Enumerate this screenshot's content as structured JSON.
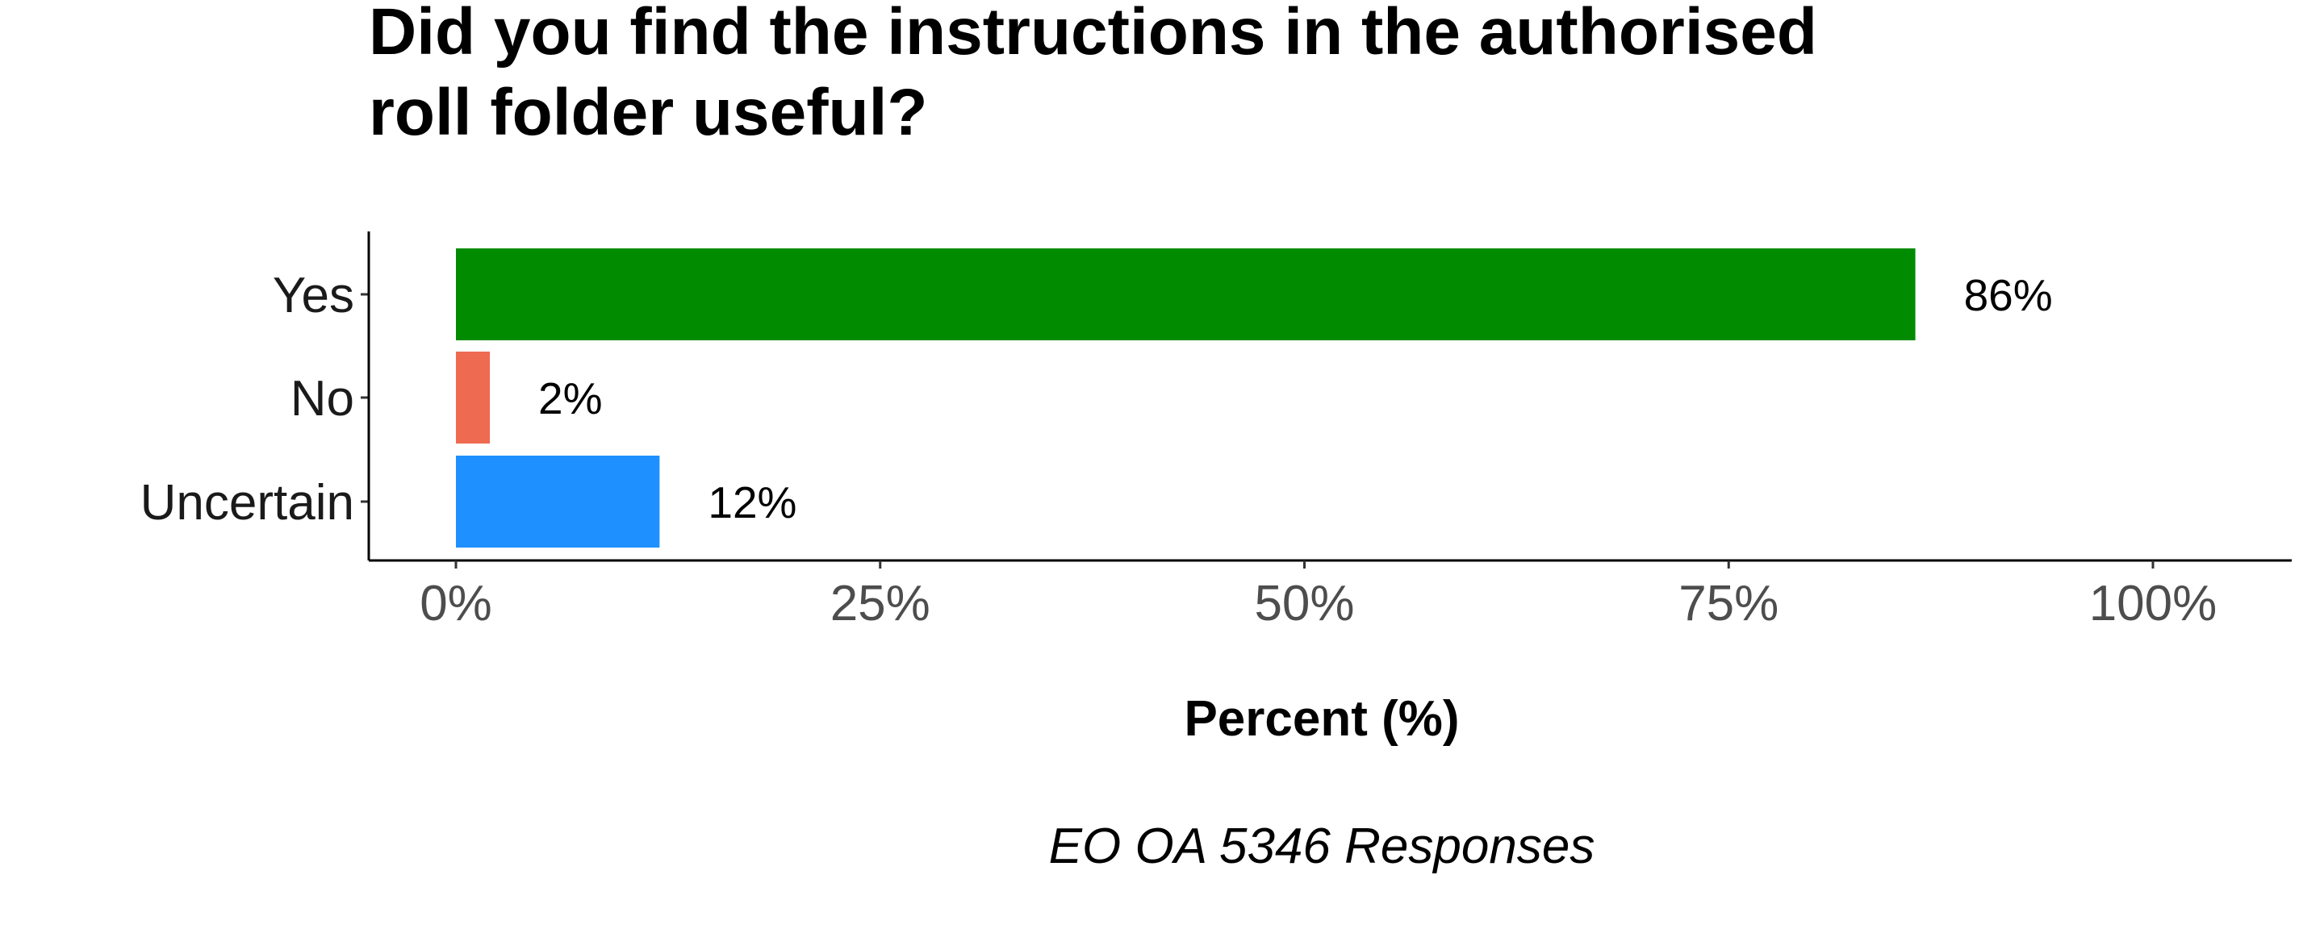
{
  "chart_data": {
    "type": "bar",
    "orientation": "horizontal",
    "title_lines": [
      "Did you find the instructions in the authorised",
      "roll folder useful?"
    ],
    "categories": [
      "Yes",
      "No",
      "Uncertain"
    ],
    "values": [
      86,
      2,
      12
    ],
    "value_labels": [
      "86%",
      "2%",
      "12%"
    ],
    "colors": [
      "#008B00",
      "#EE6A50",
      "#1E90FF"
    ],
    "xlabel": "Percent (%)",
    "ylabel": "",
    "xlim": [
      0,
      100
    ],
    "x_ticks": [
      0,
      25,
      50,
      75,
      100
    ],
    "x_tick_labels": [
      "0%",
      "25%",
      "50%",
      "75%",
      "100%"
    ],
    "caption": "EO OA 5346 Responses",
    "grid": false,
    "legend": "none"
  }
}
